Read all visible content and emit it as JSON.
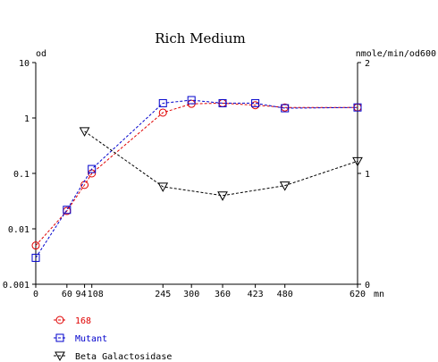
{
  "chart_data": {
    "type": "line",
    "title": "Rich Medium",
    "y_left_label": "od",
    "y_right_label": "nmole/min/od600",
    "x_unit_label": "mn",
    "x_ticks": [
      0,
      60,
      94,
      108,
      245,
      300,
      360,
      423,
      480,
      620
    ],
    "x_tick_labels": [
      "0",
      "60",
      "94",
      "108",
      "245",
      "300",
      "360",
      "423",
      "480",
      "620"
    ],
    "x_range": [
      0,
      620
    ],
    "y_left_scale": "log",
    "y_left_range": [
      0.001,
      10
    ],
    "y_left_ticks": [
      0.001,
      0.01,
      0.1,
      1,
      10
    ],
    "y_left_tick_labels": [
      "0.001",
      "0.01",
      "0.1",
      "1",
      "10"
    ],
    "y_right_scale": "linear",
    "y_right_range": [
      0,
      2
    ],
    "y_right_ticks": [
      0,
      1,
      2
    ],
    "y_right_tick_labels": [
      "0",
      "1",
      "2"
    ],
    "legend_placement": "bottom-left",
    "series": [
      {
        "name": "168",
        "marker": "circle",
        "color": "#e00000",
        "axis": "left",
        "x": [
          0,
          60,
          94,
          108,
          245,
          300,
          360,
          423,
          480,
          620
        ],
        "y": [
          0.005,
          0.021,
          0.062,
          0.1,
          1.25,
          1.8,
          1.85,
          1.7,
          1.55,
          1.55
        ]
      },
      {
        "name": "Mutant",
        "marker": "square",
        "color": "#0000cc",
        "axis": "left",
        "x": [
          0,
          60,
          108,
          245,
          300,
          360,
          423,
          480,
          620
        ],
        "y": [
          0.003,
          0.022,
          0.12,
          1.85,
          2.1,
          1.85,
          1.85,
          1.5,
          1.55
        ]
      },
      {
        "name": "Beta Galactosidase",
        "marker": "triangle-down",
        "color": "#000000",
        "axis": "right",
        "x": [
          94,
          245,
          360,
          480,
          620
        ],
        "y": [
          1.38,
          0.88,
          0.8,
          0.89,
          1.11
        ]
      }
    ]
  }
}
